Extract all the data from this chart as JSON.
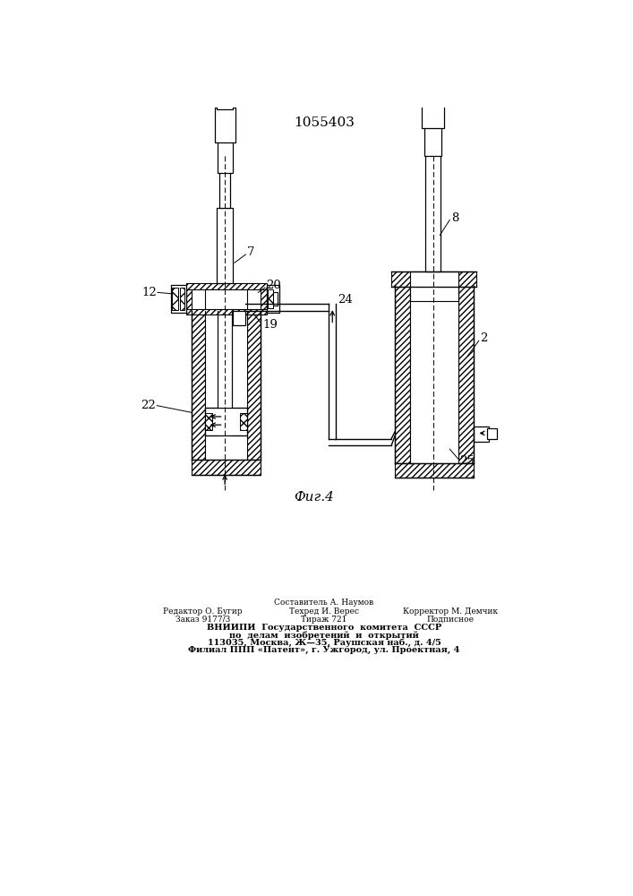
{
  "title": "1055403",
  "background_color": "#ffffff",
  "line_color": "#000000",
  "fig_caption": "Фиг.4",
  "footer": {
    "col1": [
      "Редактор О. Бугир",
      "Заказ 9177/3"
    ],
    "col2": [
      "Составитель А. Наумов",
      "Техред И. Верес",
      "Тираж 721"
    ],
    "col3": [
      "Корректор М. Демчик",
      "Подписное"
    ],
    "bold": [
      "ВНИИПИ  Государственного  комитета  СССР",
      "по  делам  изобретений  и  открытий",
      "113035, Москва, Ж—35, Раушская наб., д. 4/5",
      "Филиал ППП «Патент», г. Ужгород, ул. Проектная, 4"
    ]
  }
}
